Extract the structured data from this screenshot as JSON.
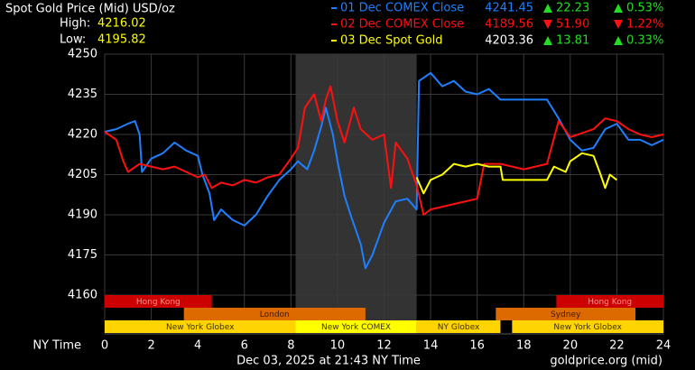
{
  "chart_data": {
    "type": "line",
    "title": "Spot Gold Price (Mid) USD/oz",
    "high_label": "High:",
    "high": "4216.02",
    "low_label": "Low:",
    "low": "4195.82",
    "x_axis_label": "NY Time",
    "timestamp": "Dec 03, 2025 at 21:43 NY Time",
    "source": "goldprice.org (mid)",
    "xlim": [
      0,
      24
    ],
    "xticks": [
      0,
      2,
      4,
      6,
      8,
      10,
      12,
      14,
      16,
      18,
      20,
      22,
      24
    ],
    "ylim": [
      4145.5,
      4250
    ],
    "yticks": [
      4160,
      4175,
      4190,
      4205,
      4220,
      4235,
      4250
    ],
    "grid": true,
    "shaded": [
      8.2,
      13.4
    ],
    "series": [
      {
        "name": "01 Dec COMEX Close",
        "color": "#1e80ff",
        "last": "4241.45",
        "change": "22.23",
        "change_pct": "0.53%",
        "direction": "up",
        "x": [
          0,
          0.5,
          1,
          1.3,
          1.5,
          1.6,
          2,
          2.5,
          3,
          3.5,
          4,
          4.2,
          4.5,
          4.7,
          5,
          5.5,
          6,
          6.5,
          7,
          7.5,
          8,
          8.3,
          8.7,
          9,
          9.3,
          9.5,
          9.8,
          10,
          10.3,
          10.6,
          11,
          11.2,
          11.5,
          12,
          12.5,
          13,
          13.4,
          13.5,
          14,
          14.5,
          15,
          15.5,
          16,
          16.5,
          17,
          18,
          19,
          19.5,
          20,
          20.5,
          21,
          21.5,
          22,
          22.5,
          23,
          23.5,
          24
        ],
        "values": [
          4221,
          4222,
          4224,
          4225,
          4220,
          4206,
          4211,
          4213,
          4217,
          4214,
          4212,
          4205,
          4198,
          4188,
          4192,
          4188,
          4186,
          4190,
          4197,
          4203,
          4207,
          4210,
          4207,
          4214,
          4223,
          4230,
          4220,
          4210,
          4197,
          4189,
          4179,
          4170,
          4175,
          4187,
          4195,
          4196,
          4192,
          4240,
          4243,
          4238,
          4240,
          4236,
          4235,
          4237,
          4233,
          4233,
          4233,
          4226,
          4218,
          4214,
          4215,
          4222,
          4224,
          4218,
          4218,
          4216,
          4218
        ]
      },
      {
        "name": "02 Dec COMEX Close",
        "color": "#ff1010",
        "last": "4189.56",
        "change": "51.90",
        "change_pct": "1.22%",
        "direction": "down",
        "x": [
          0,
          0.5,
          0.8,
          1,
          1.5,
          2,
          2.5,
          3,
          3.5,
          4,
          4.3,
          4.6,
          5,
          5.5,
          6,
          6.5,
          7,
          7.5,
          8,
          8.3,
          8.6,
          9,
          9.3,
          9.5,
          9.7,
          10,
          10.3,
          10.7,
          11,
          11.5,
          12,
          12.3,
          12.5,
          13,
          13.4,
          13.7,
          14,
          15,
          16,
          16.3,
          17,
          18,
          19,
          19.5,
          20,
          21,
          21.5,
          22,
          22.5,
          23,
          23.5,
          24
        ],
        "values": [
          4221,
          4218,
          4210,
          4206,
          4209,
          4208,
          4207,
          4208,
          4206,
          4204,
          4205,
          4200,
          4202,
          4201,
          4203,
          4202,
          4204,
          4205,
          4211,
          4215,
          4230,
          4235,
          4225,
          4233,
          4238,
          4225,
          4217,
          4230,
          4222,
          4218,
          4220,
          4200,
          4217,
          4211,
          4201,
          4190,
          4192,
          4194,
          4196,
          4209,
          4209,
          4207,
          4209,
          4225,
          4219,
          4222,
          4226,
          4225,
          4222,
          4220,
          4219,
          4220
        ]
      },
      {
        "name": "03 Dec Spot Gold",
        "color": "#ffff00",
        "last": "4203.36",
        "change": "13.81",
        "change_pct": "0.33%",
        "direction": "up",
        "x": [
          13.4,
          13.7,
          14,
          14.5,
          15,
          15.5,
          16,
          16.5,
          17,
          17.1,
          18,
          19,
          19.3,
          19.8,
          20,
          20.5,
          21,
          21.3,
          21.5,
          21.7,
          22
        ],
        "values": [
          4204,
          4198,
          4203,
          4205,
          4209,
          4208,
          4209,
          4208,
          4208,
          4203,
          4203,
          4203,
          4208,
          4206,
          4210,
          4213,
          4212,
          4205,
          4200,
          4205,
          4203
        ]
      }
    ],
    "sessions": [
      {
        "label": "Hong Kong",
        "row": 0,
        "start": 0,
        "end": 4.6,
        "color": "#cc0000",
        "text_color": "#ff9090"
      },
      {
        "label": "Hong Kong",
        "row": 0,
        "start": 19.4,
        "end": 24,
        "color": "#cc0000",
        "text_color": "#ff9090"
      },
      {
        "label": "London",
        "row": 1,
        "start": 3.4,
        "end": 11.2,
        "color": "#dd6a00",
        "text_color": "#3a1a00"
      },
      {
        "label": "Sydney",
        "row": 1,
        "start": 16.8,
        "end": 22.8,
        "color": "#dd6a00",
        "text_color": "#3a1a00"
      },
      {
        "label": "New York Globex",
        "row": 2,
        "start": 0,
        "end": 8.2,
        "color": "#ffd400",
        "text_color": "#3a3000"
      },
      {
        "label": "New York COMEX",
        "row": 2,
        "start": 8.2,
        "end": 13.4,
        "color": "#ffff00",
        "text_color": "#3a3000"
      },
      {
        "label": "NY Globex",
        "row": 2,
        "start": 13.4,
        "end": 17,
        "color": "#ffd400",
        "text_color": "#3a3000"
      },
      {
        "label": "New York Globex",
        "row": 2,
        "start": 17.5,
        "end": 24,
        "color": "#ffd400",
        "text_color": "#3a3000"
      }
    ]
  }
}
